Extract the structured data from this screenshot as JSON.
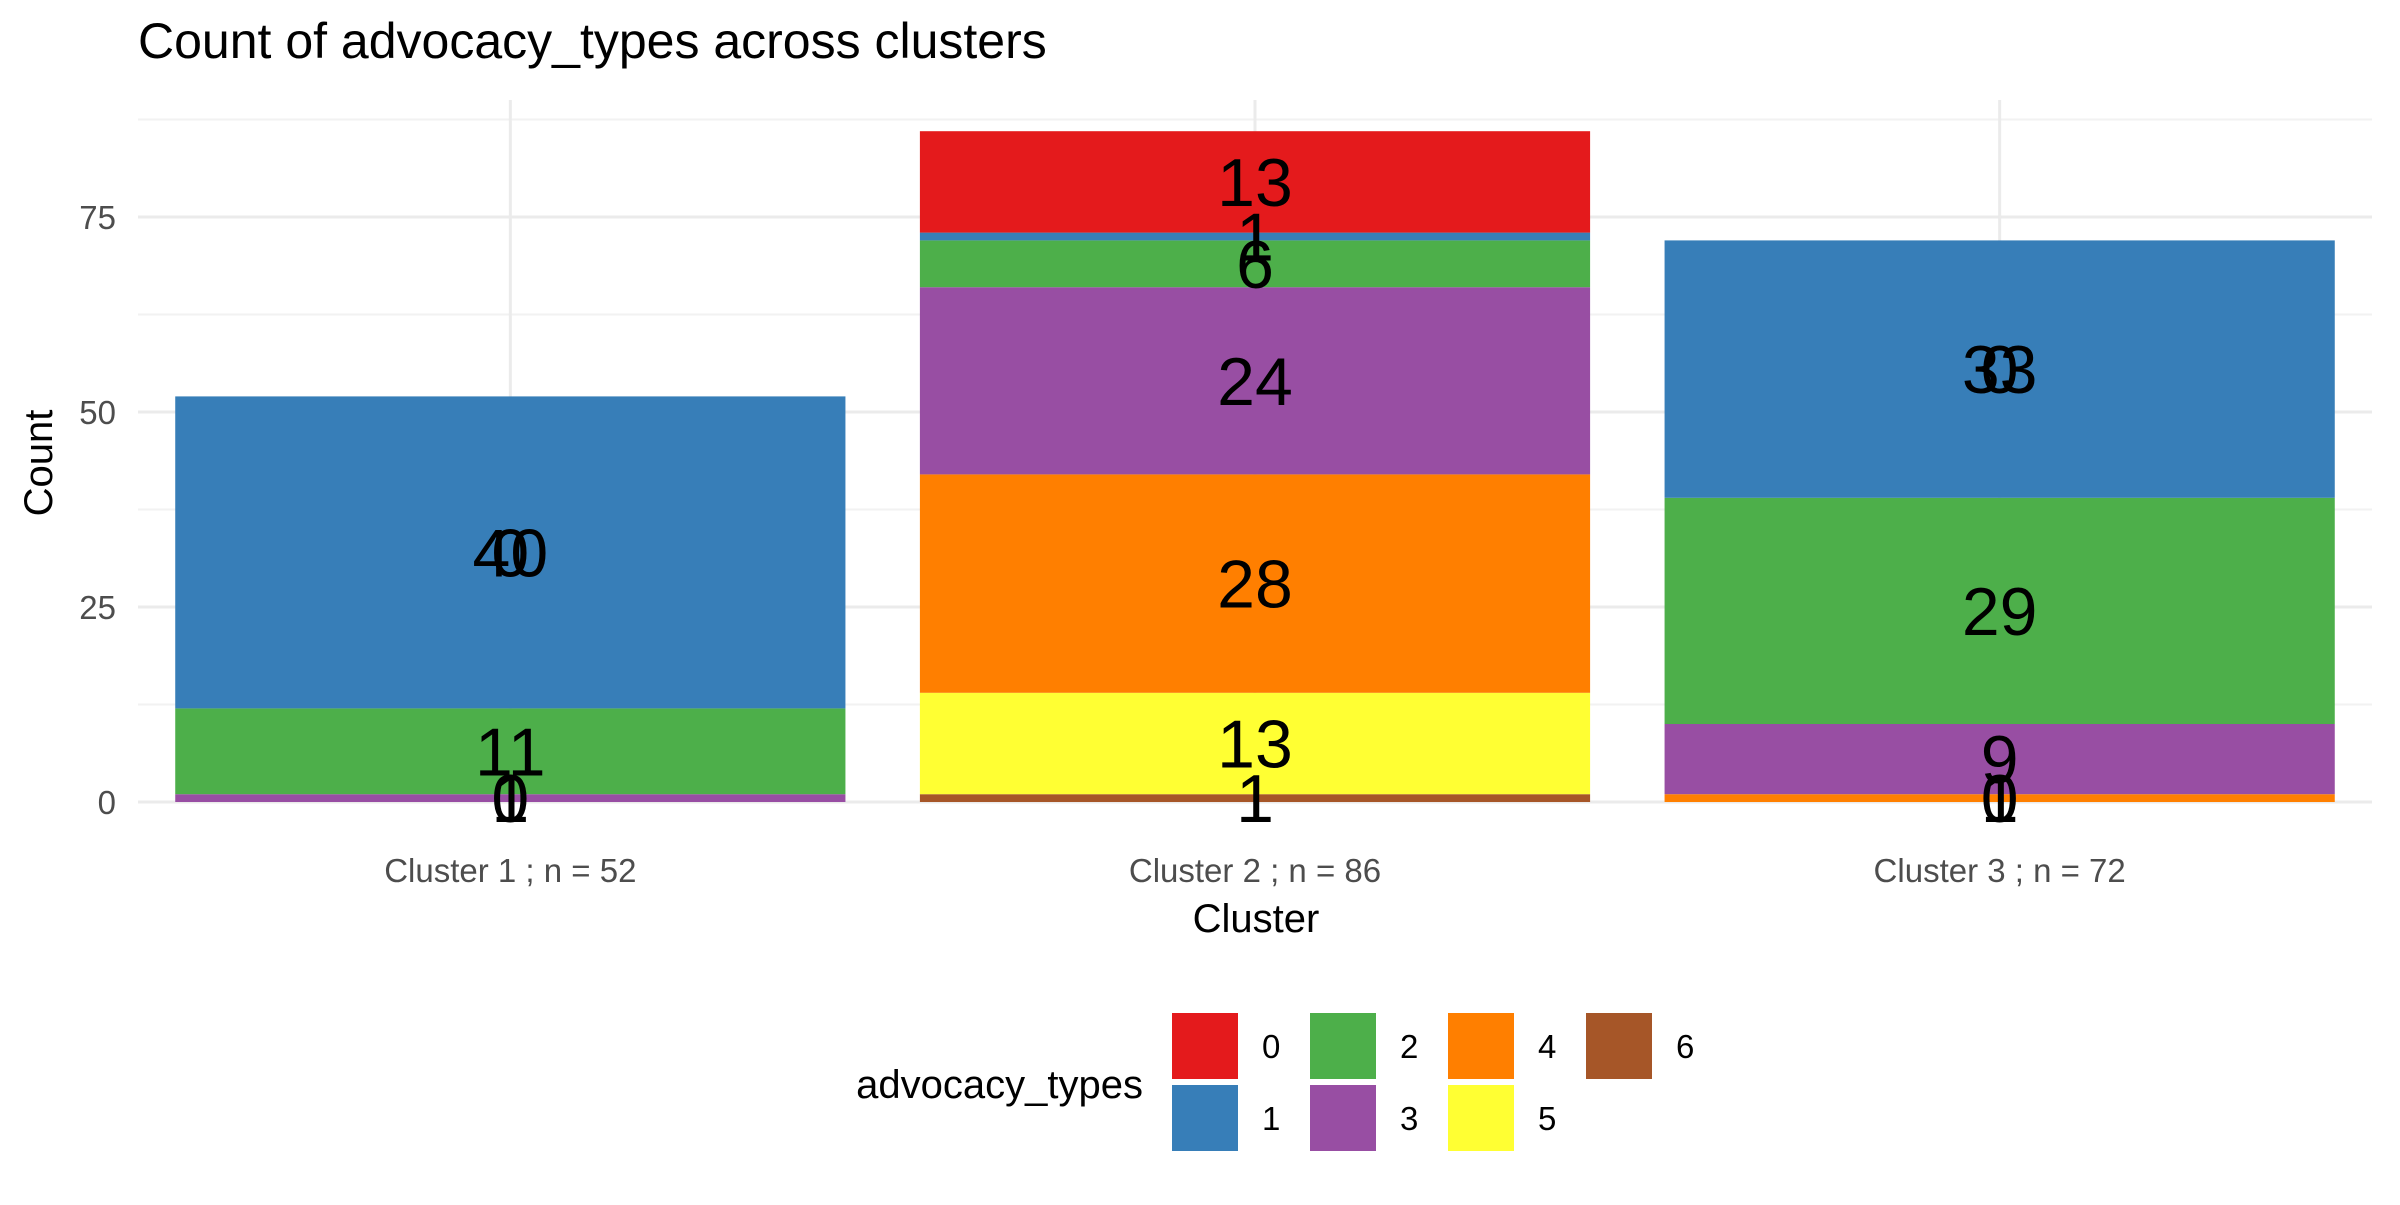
{
  "chart_data": {
    "type": "bar",
    "stacked": true,
    "title": "Count of advocacy_types across clusters",
    "xlabel": "Cluster",
    "ylabel": "Count",
    "ylim": [
      0,
      90
    ],
    "yticks": [
      0,
      25,
      50,
      75
    ],
    "grid": true,
    "legend_position": "bottom",
    "legend_title": "advocacy_types",
    "categories": [
      "Cluster 1 ; n = 52",
      "Cluster 2 ; n = 86",
      "Cluster 3 ; n = 72"
    ],
    "series": [
      {
        "name": "0",
        "color": "#E41A1C",
        "values": [
          0,
          13,
          0
        ]
      },
      {
        "name": "1",
        "color": "#377EB8",
        "values": [
          40,
          1,
          33
        ]
      },
      {
        "name": "2",
        "color": "#4DAF4A",
        "values": [
          11,
          6,
          29
        ]
      },
      {
        "name": "3",
        "color": "#984EA3",
        "values": [
          1,
          24,
          9
        ]
      },
      {
        "name": "4",
        "color": "#FF7F00",
        "values": [
          0,
          28,
          1
        ]
      },
      {
        "name": "5",
        "color": "#FFFF33",
        "values": [
          0,
          13,
          0
        ]
      },
      {
        "name": "6",
        "color": "#A65628",
        "values": [
          0,
          1,
          0
        ]
      }
    ],
    "bar_labels": [
      [
        {
          "series": "1",
          "text": "0"
        },
        {
          "series": "1",
          "text": "40"
        },
        {
          "series": "2",
          "text": "11"
        },
        {
          "series": "3",
          "text": "0"
        },
        {
          "series": "3",
          "text": "1"
        }
      ],
      [
        {
          "series": "0",
          "text": "13"
        },
        {
          "series": "1",
          "text": "1"
        },
        {
          "series": "2",
          "text": "6"
        },
        {
          "series": "3",
          "text": "24"
        },
        {
          "series": "4",
          "text": "28"
        },
        {
          "series": "5",
          "text": "13"
        },
        {
          "series": "6",
          "text": "1"
        }
      ],
      [
        {
          "series": "1",
          "text": "0"
        },
        {
          "series": "1",
          "text": "33"
        },
        {
          "series": "2",
          "text": "29"
        },
        {
          "series": "3",
          "text": "9"
        },
        {
          "series": "4",
          "text": "0"
        },
        {
          "series": "4",
          "text": "1"
        }
      ]
    ]
  }
}
